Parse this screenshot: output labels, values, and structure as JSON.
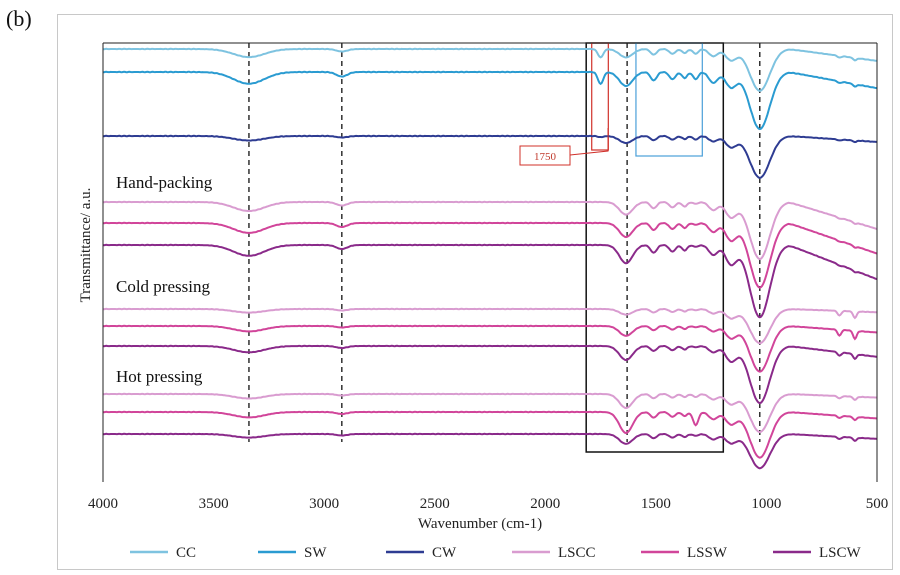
{
  "panel_label": "(b)",
  "chart_data": {
    "type": "line",
    "xlabel": "Wavenumber (cm-1)",
    "ylabel": "Transmittance/ a.u.",
    "xlim": [
      4000,
      500
    ],
    "x_reversed": true,
    "x_ticks": [
      "4000",
      "3500",
      "3000",
      "2500",
      "2000",
      "1500",
      "1000",
      "500"
    ],
    "grid": false,
    "legend_position": "bottom",
    "groups": [
      "Hand-packing",
      "Cold pressing",
      "Hot pressing"
    ],
    "reference_lines": [
      3340,
      2920,
      1630,
      1030
    ],
    "annotation": {
      "text": "1750",
      "x": 1750
    },
    "series": [
      {
        "name": "CC",
        "color": "#7ec3e0"
      },
      {
        "name": "SW",
        "color": "#2a9bd1"
      },
      {
        "name": "CW",
        "color": "#2e3c92"
      },
      {
        "name": "LSCC",
        "color": "#d99cd0"
      },
      {
        "name": "LSSW",
        "color": "#d1459a"
      },
      {
        "name": "LSCW",
        "color": "#8a2a8a"
      }
    ]
  }
}
